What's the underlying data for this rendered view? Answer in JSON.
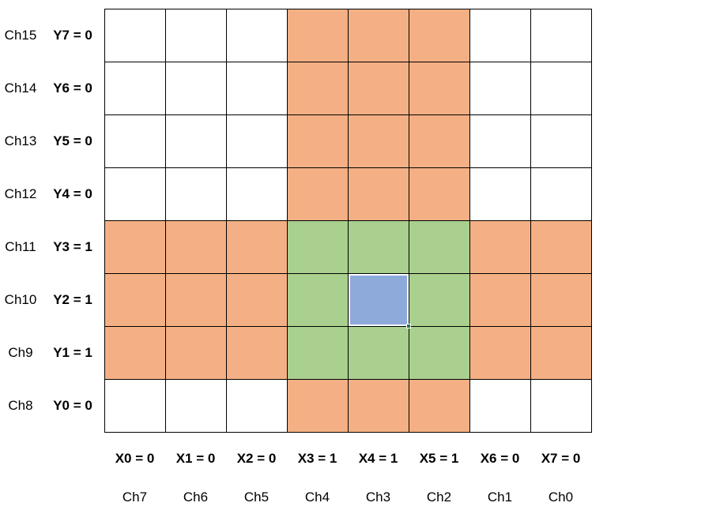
{
  "colors": {
    "white": "#ffffff",
    "orange": "#f4b084",
    "green": "#a9d08e",
    "blue": "#8eaadb",
    "selection_border": "#ffffff"
  },
  "rows": [
    {
      "ch": "Ch15",
      "y": "Y7 = 0"
    },
    {
      "ch": "Ch14",
      "y": "Y6 = 0"
    },
    {
      "ch": "Ch13",
      "y": "Y5 = 0"
    },
    {
      "ch": "Ch12",
      "y": "Y4 = 0"
    },
    {
      "ch": "Ch11",
      "y": "Y3 = 1"
    },
    {
      "ch": "Ch10",
      "y": "Y2 = 1"
    },
    {
      "ch": "Ch9",
      "y": "Y1 = 1"
    },
    {
      "ch": "Ch8",
      "y": "Y0 = 0"
    }
  ],
  "columns": [
    {
      "x": "X0 = 0",
      "ch": "Ch7"
    },
    {
      "x": "X1 = 0",
      "ch": "Ch6"
    },
    {
      "x": "X2 = 0",
      "ch": "Ch5"
    },
    {
      "x": "X3 = 1",
      "ch": "Ch4"
    },
    {
      "x": "X4 = 1",
      "ch": "Ch3"
    },
    {
      "x": "X5 = 1",
      "ch": "Ch2"
    },
    {
      "x": "X6 = 0",
      "ch": "Ch1"
    },
    {
      "x": "X7 = 0",
      "ch": "Ch0"
    }
  ],
  "cell_colors": [
    [
      "white",
      "white",
      "white",
      "orange",
      "orange",
      "orange",
      "white",
      "white"
    ],
    [
      "white",
      "white",
      "white",
      "orange",
      "orange",
      "orange",
      "white",
      "white"
    ],
    [
      "white",
      "white",
      "white",
      "orange",
      "orange",
      "orange",
      "white",
      "white"
    ],
    [
      "white",
      "white",
      "white",
      "orange",
      "orange",
      "orange",
      "white",
      "white"
    ],
    [
      "orange",
      "orange",
      "orange",
      "green",
      "green",
      "green",
      "orange",
      "orange"
    ],
    [
      "orange",
      "orange",
      "orange",
      "green",
      "blue",
      "green",
      "orange",
      "orange"
    ],
    [
      "orange",
      "orange",
      "orange",
      "green",
      "green",
      "green",
      "orange",
      "orange"
    ],
    [
      "white",
      "white",
      "white",
      "orange",
      "orange",
      "orange",
      "white",
      "white"
    ]
  ],
  "selected_cell": {
    "row": 5,
    "col": 4
  }
}
